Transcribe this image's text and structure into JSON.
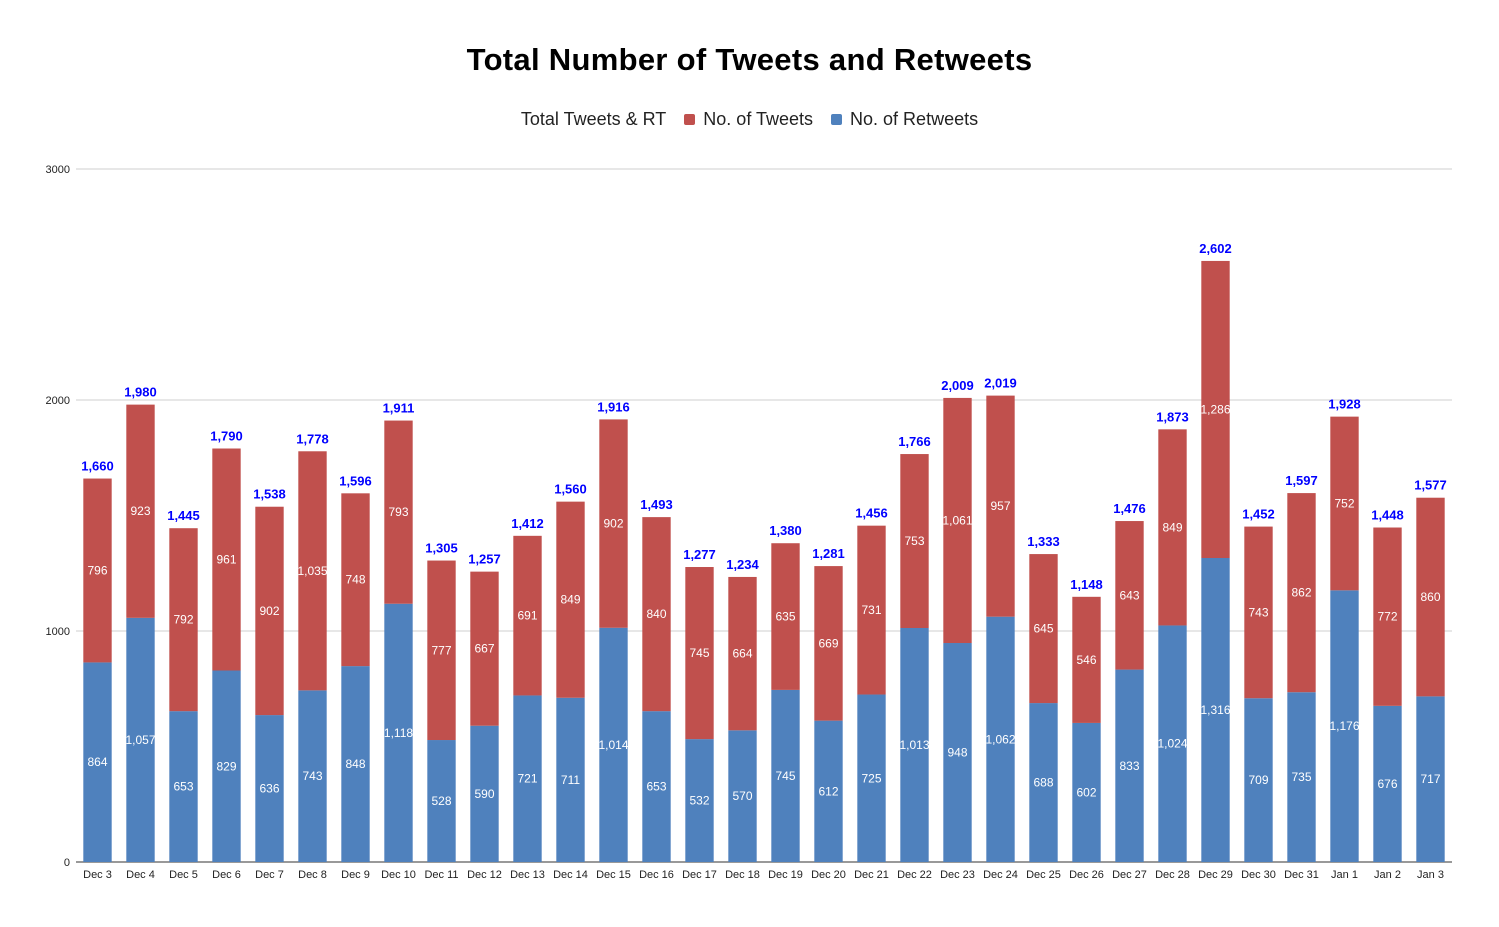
{
  "chart_data": {
    "type": "bar",
    "stacked": true,
    "title": "Total Number of Tweets and Retweets",
    "legend": [
      "Total Tweets & RT",
      "No. of Tweets",
      "No. of Retweets"
    ],
    "legend_position": "top",
    "categories": [
      "Dec 3",
      "Dec 4",
      "Dec 5",
      "Dec 6",
      "Dec 7",
      "Dec 8",
      "Dec 9",
      "Dec 10",
      "Dec 11",
      "Dec 12",
      "Dec 13",
      "Dec 14",
      "Dec 15",
      "Dec 16",
      "Dec 17",
      "Dec 18",
      "Dec 19",
      "Dec 20",
      "Dec 21",
      "Dec 22",
      "Dec 23",
      "Dec 24",
      "Dec 25",
      "Dec 26",
      "Dec 27",
      "Dec 28",
      "Dec 29",
      "Dec 30",
      "Dec 31",
      "Jan 1",
      "Jan 2",
      "Jan 3"
    ],
    "series": [
      {
        "name": "No. of Retweets",
        "color": "#4f81bd",
        "values": [
          864,
          1057,
          653,
          829,
          636,
          743,
          848,
          1118,
          528,
          590,
          721,
          711,
          1014,
          653,
          532,
          570,
          745,
          612,
          725,
          1013,
          948,
          1062,
          688,
          602,
          833,
          1024,
          1316,
          709,
          735,
          1176,
          676,
          717
        ]
      },
      {
        "name": "No. of Tweets",
        "color": "#c0504d",
        "values": [
          796,
          923,
          792,
          961,
          902,
          1035,
          748,
          793,
          777,
          667,
          691,
          849,
          902,
          840,
          745,
          664,
          635,
          669,
          731,
          753,
          1061,
          957,
          645,
          546,
          643,
          849,
          1286,
          743,
          862,
          752,
          772,
          860
        ]
      }
    ],
    "totals": {
      "name": "Total Tweets & RT",
      "color": "#0000ff",
      "values": [
        1660,
        1980,
        1445,
        1790,
        1538,
        1778,
        1596,
        1911,
        1305,
        1257,
        1412,
        1560,
        1916,
        1493,
        1277,
        1234,
        1380,
        1281,
        1456,
        1766,
        2009,
        2019,
        1333,
        1148,
        1476,
        1873,
        2602,
        1452,
        1597,
        1928,
        1448,
        1577
      ]
    },
    "y_ticks": [
      "0",
      "1000",
      "2000",
      "3000"
    ],
    "ylim": [
      0,
      3000
    ],
    "xlabel": "",
    "ylabel": ""
  }
}
